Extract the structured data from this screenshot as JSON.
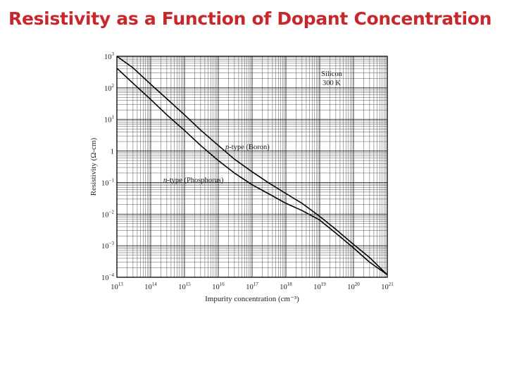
{
  "slide": {
    "title": "Resistivity as a Function of Dopant Concentration"
  },
  "chart_data": {
    "type": "line",
    "xlabel": "Impurity concentration (cm⁻³)",
    "ylabel": "Resistivity (Ω-cm)",
    "x_log": true,
    "y_log": true,
    "xlim": [
      10000000000000.0,
      1e+21
    ],
    "ylim": [
      0.0001,
      1000.0
    ],
    "grid": true,
    "x_ticks": [
      {
        "base": "10",
        "exp": "13"
      },
      {
        "base": "10",
        "exp": "14"
      },
      {
        "base": "10",
        "exp": "15"
      },
      {
        "base": "10",
        "exp": "16"
      },
      {
        "base": "10",
        "exp": "17"
      },
      {
        "base": "10",
        "exp": "18"
      },
      {
        "base": "10",
        "exp": "19"
      },
      {
        "base": "10",
        "exp": "20"
      },
      {
        "base": "10",
        "exp": "21"
      }
    ],
    "y_ticks": [
      {
        "base": "10",
        "exp": "−4"
      },
      {
        "base": "10",
        "exp": "−3"
      },
      {
        "base": "10",
        "exp": "−2"
      },
      {
        "base": "10",
        "exp": "−1"
      },
      {
        "base": "1",
        "exp": ""
      },
      {
        "base": "10",
        "exp": "1"
      },
      {
        "base": "10",
        "exp": "2"
      },
      {
        "base": "10",
        "exp": "3"
      }
    ],
    "annotations": {
      "material_line1": "Silicon",
      "material_line2": "300 K",
      "p_label_italic": "p",
      "p_label_rest": "-type (Boron)",
      "n_label_italic": "n",
      "n_label_rest": "-type (Phosphorus)"
    },
    "series": [
      {
        "name": "p-type (Boron)",
        "x": [
          10000000000000.0,
          30000000000000.0,
          100000000000000.0,
          300000000000000.0,
          1000000000000000.0,
          3000000000000000.0,
          1e+16,
          3e+16,
          1e+17,
          3e+17,
          1e+18,
          3e+18,
          1e+19,
          3e+19,
          1e+20,
          3e+20,
          1e+21
        ],
        "y": [
          1000,
          430,
          130,
          45,
          14,
          4.6,
          1.5,
          0.55,
          0.22,
          0.1,
          0.045,
          0.022,
          0.0085,
          0.0033,
          0.0011,
          0.00042,
          0.00012
        ]
      },
      {
        "name": "n-type (Phosphorus)",
        "x": [
          10000000000000.0,
          30000000000000.0,
          100000000000000.0,
          300000000000000.0,
          1000000000000000.0,
          3000000000000000.0,
          1e+16,
          3e+16,
          1e+17,
          3e+17,
          1e+18,
          3e+18,
          1e+19,
          3e+19,
          1e+20,
          3e+20,
          1e+21
        ],
        "y": [
          420,
          140,
          43,
          14,
          4.5,
          1.5,
          0.5,
          0.2,
          0.085,
          0.045,
          0.022,
          0.013,
          0.0065,
          0.0025,
          0.00085,
          0.0003,
          0.00012
        ]
      }
    ]
  }
}
